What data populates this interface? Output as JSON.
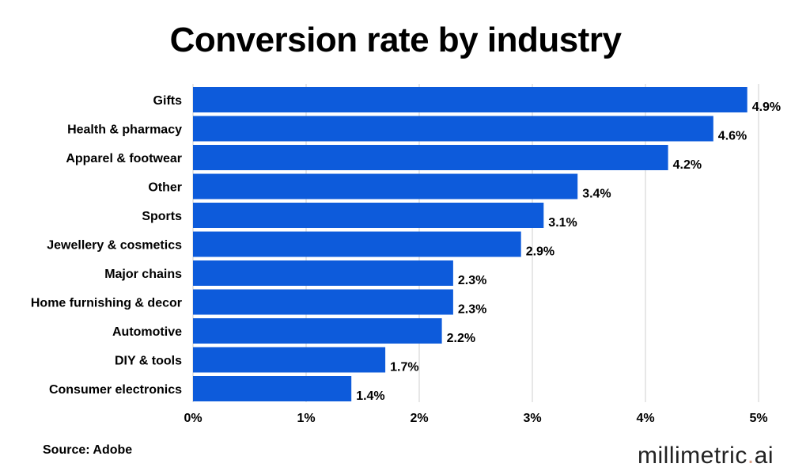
{
  "chart_data": {
    "type": "bar",
    "orientation": "horizontal",
    "title": "Conversion rate by industry",
    "categories": [
      "Gifts",
      "Health & pharmacy",
      "Apparel & footwear",
      "Other",
      "Sports",
      "Jewellery & cosmetics",
      "Major chains",
      "Home furnishing & decor",
      "Automotive",
      "DIY & tools",
      "Consumer electronics"
    ],
    "values": [
      4.9,
      4.6,
      4.2,
      3.4,
      3.1,
      2.9,
      2.3,
      2.3,
      2.2,
      1.7,
      1.4
    ],
    "data_labels": [
      "4.9%",
      "4.6%",
      "4.2%",
      "3.4%",
      "3.1%",
      "2.9%",
      "2.3%",
      "2.3%",
      "2.2%",
      "1.7%",
      "1.4%"
    ],
    "xlim": [
      0,
      5
    ],
    "xticks": [
      0,
      1,
      2,
      3,
      4,
      5
    ],
    "xtick_labels": [
      "0%",
      "1%",
      "2%",
      "3%",
      "4%",
      "5%"
    ],
    "xlabel": "",
    "ylabel": "",
    "grid": "vertical",
    "bar_color": "#0d5bdb"
  },
  "source": "Source: Adobe",
  "logo": {
    "main": "millimetric",
    "dot": ".",
    "suffix": "ai"
  }
}
